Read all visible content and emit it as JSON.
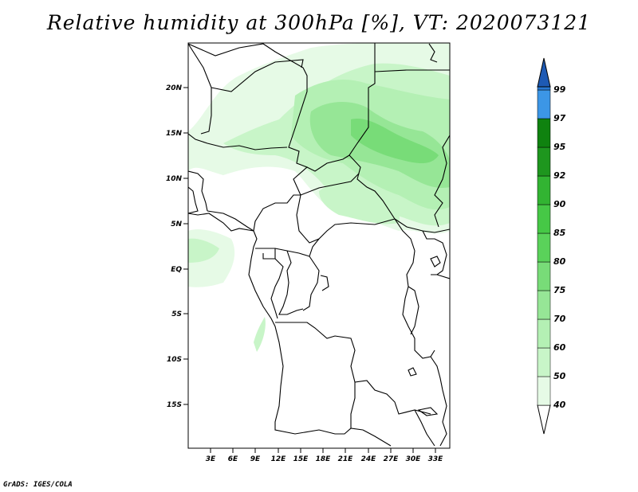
{
  "title": "Relative humidity at 300hPa [%], VT: 2020073121",
  "credit": "GrADS: IGES/COLA",
  "map": {
    "region": "Central Africa",
    "lat_ticks": [
      "20N",
      "15N",
      "10N",
      "5N",
      "EQ",
      "5S",
      "10S",
      "15S"
    ],
    "lon_ticks": [
      "3E",
      "6E",
      "9E",
      "12E",
      "15E",
      "18E",
      "21E",
      "24E",
      "27E",
      "30E",
      "33E"
    ]
  },
  "colorbar": {
    "levels": [
      "40",
      "50",
      "60",
      "70",
      "75",
      "80",
      "85",
      "90",
      "92",
      "95",
      "97",
      "99"
    ],
    "colors": [
      "#e6fae6",
      "#c8f5c8",
      "#b4f0b4",
      "#96e696",
      "#78dc78",
      "#5ad25a",
      "#46c846",
      "#32b432",
      "#1e961e",
      "#0f820f",
      "#3c96e6",
      "#2878d2",
      "#1e5ab4"
    ]
  }
}
